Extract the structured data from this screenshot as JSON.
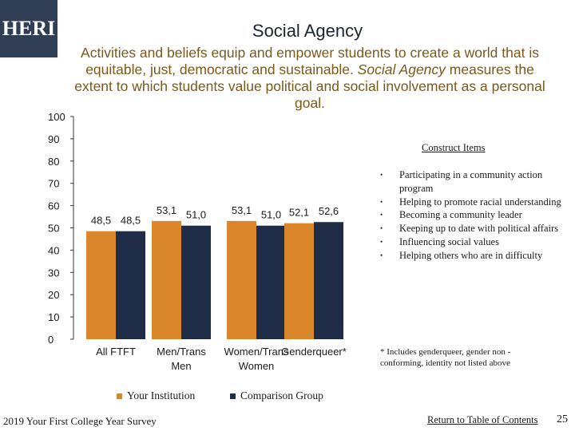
{
  "logo": "HERI",
  "title": "Social Agency",
  "description": {
    "before": "Activities and beliefs equip and empower students to create a world that is equitable, just, democratic and sustainable. ",
    "emph": "Social Agency",
    "after": " measures the extent to which students value political and social involvement as a personal goal."
  },
  "chart_data": {
    "type": "bar",
    "categories": [
      "All FTFT",
      "Men/Trans Men",
      "Women/Trans Women",
      "Genderqueer*"
    ],
    "series": [
      {
        "name": "Your Institution",
        "values": [
          48.5,
          53.1,
          53.1,
          52.1
        ],
        "labels": [
          "48,5",
          "53,1",
          "53,1",
          "52,1"
        ],
        "color": "#d9872a"
      },
      {
        "name": "Comparison Group",
        "values": [
          48.5,
          51.0,
          51.0,
          52.6
        ],
        "labels": [
          "48,5",
          "51,0",
          "51,0",
          "52,6"
        ],
        "color": "#1f2c47"
      }
    ],
    "ylim": [
      0,
      100
    ],
    "yticks": [
      0,
      10,
      20,
      30,
      40,
      50,
      60,
      70,
      80,
      90,
      100
    ],
    "ytick_labels": [
      "0",
      "10",
      "20",
      "30",
      "40",
      "50",
      "60",
      "70",
      "80",
      "90",
      "100"
    ],
    "category_labels": [
      [
        "All FTFT"
      ],
      [
        "Men/Trans",
        "Men"
      ],
      [
        "Women/Trans",
        "Women"
      ],
      [
        "Genderqueer*"
      ]
    ],
    "legend": "bottom",
    "grid": false
  },
  "construct": {
    "title": "Construct Items",
    "items": [
      "Participating in a community action program",
      "Helping to promote racial understanding",
      "Becoming a community leader",
      "Keeping up to date with political affairs",
      "Influencing social values",
      "Helping others who are in difficulty"
    ]
  },
  "footnote": "* Includes genderqueer, gender non - conforming, identity not listed above",
  "footer": {
    "survey": "2019 Your First College Year Survey",
    "toc_link": "Return to Table of Contents",
    "page_number": "25"
  }
}
